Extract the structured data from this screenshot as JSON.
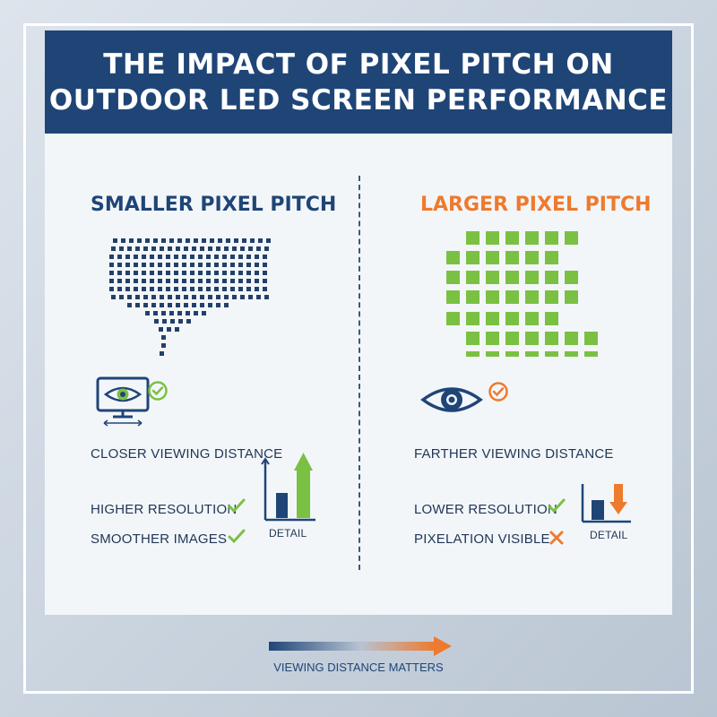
{
  "header": {
    "title_line1": "THE IMPACT OF PIXEL PITCH ON",
    "title_line2": "OUTDOOR LED SCREEN PERFORMANCE"
  },
  "left": {
    "title": "SMALLER PIXEL PITCH",
    "viewing": "CLOSER VIEWING DISTANCE",
    "benefit1": "HIGHER RESOLUTION",
    "benefit2": "SMOOTHER IMAGES",
    "detail_label": "DETAIL",
    "icons": [
      "monitor-eye-icon",
      "check-circle-icon",
      "check-icon",
      "bar-chart-up-icon"
    ]
  },
  "right": {
    "title": "LARGER PIXEL PITCH",
    "viewing": "FARTHER VIEWING DISTANCE",
    "effect1": "LOWER RESOLUTION",
    "effect2": "PIXELATION VISIBLE",
    "detail_label": "DETAIL",
    "icons": [
      "eye-icon",
      "check-circle-icon",
      "check-icon",
      "cross-icon",
      "bar-chart-down-icon"
    ]
  },
  "footer": {
    "text": "VIEWING DISTANCE MATTERS"
  },
  "colors": {
    "navy": "#1f4577",
    "orange": "#ee7a2e",
    "green": "#7ac143",
    "small_pixel": "#23406a"
  }
}
